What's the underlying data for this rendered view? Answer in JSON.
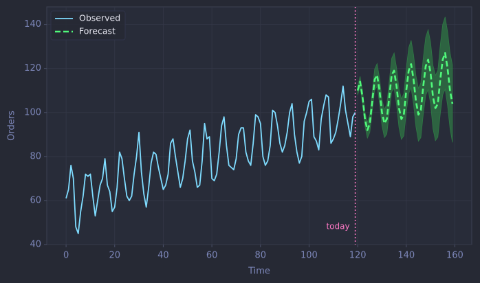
{
  "chart_data": {
    "type": "line",
    "xlabel": "Time",
    "ylabel": "Orders",
    "xlim": [
      -7.95,
      166.95
    ],
    "ylim": [
      40,
      148
    ],
    "xticks": [
      0,
      20,
      40,
      60,
      80,
      100,
      120,
      140,
      160
    ],
    "yticks": [
      40,
      60,
      80,
      100,
      120,
      140
    ],
    "grid": true,
    "legend": "upper left",
    "series": [
      {
        "name": "Observed",
        "color": "#7fdcff",
        "style": "solid",
        "x": [
          0,
          1,
          2,
          3,
          4,
          5,
          6,
          7,
          8,
          9,
          10,
          11,
          12,
          13,
          14,
          15,
          16,
          17,
          18,
          19,
          20,
          21,
          22,
          23,
          24,
          25,
          26,
          27,
          28,
          29,
          30,
          31,
          32,
          33,
          34,
          35,
          36,
          37,
          38,
          39,
          40,
          41,
          42,
          43,
          44,
          45,
          46,
          47,
          48,
          49,
          50,
          51,
          52,
          53,
          54,
          55,
          56,
          57,
          58,
          59,
          60,
          61,
          62,
          63,
          64,
          65,
          66,
          67,
          68,
          69,
          70,
          71,
          72,
          73,
          74,
          75,
          76,
          77,
          78,
          79,
          80,
          81,
          82,
          83,
          84,
          85,
          86,
          87,
          88,
          89,
          90,
          91,
          92,
          93,
          94,
          95,
          96,
          97,
          98,
          99,
          100,
          101,
          102,
          103,
          104,
          105,
          106,
          107,
          108,
          109,
          110,
          111,
          112,
          113,
          114,
          115,
          116,
          117,
          118,
          119
        ],
        "values": [
          61,
          65,
          76,
          70,
          48,
          45,
          55,
          62,
          72,
          71,
          72,
          62,
          53,
          60,
          67,
          70,
          79,
          67,
          64,
          55,
          57,
          66,
          82,
          79,
          70,
          62,
          60,
          62,
          72,
          80,
          91,
          73,
          63,
          57,
          66,
          77,
          82,
          81,
          75,
          70,
          65,
          67,
          72,
          86,
          88,
          80,
          73,
          66,
          70,
          78,
          88,
          92,
          78,
          73,
          66,
          67,
          78,
          95,
          88,
          89,
          70,
          69,
          72,
          82,
          94,
          98,
          85,
          76,
          75,
          74,
          79,
          90,
          93,
          93,
          82,
          78,
          76,
          86,
          99,
          98,
          95,
          80,
          76,
          78,
          85,
          101,
          100,
          94,
          86,
          82,
          85,
          91,
          100,
          104,
          90,
          82,
          77,
          80,
          96,
          100,
          105,
          106,
          89,
          87,
          83,
          97,
          103,
          108,
          107,
          86,
          88,
          91,
          97,
          104,
          112,
          101,
          95,
          89,
          98,
          100
        ]
      },
      {
        "name": "Forecast",
        "color": "#50fa7b",
        "style": "dashed",
        "x": [
          120,
          121,
          122,
          123,
          124,
          125,
          126,
          127,
          128,
          129,
          130,
          131,
          132,
          133,
          134,
          135,
          136,
          137,
          138,
          139,
          140,
          141,
          142,
          143,
          144,
          145,
          146,
          147,
          148,
          149,
          150,
          151,
          152,
          153,
          154,
          155,
          156,
          157,
          158,
          159
        ],
        "values": [
          110,
          114,
          107,
          97,
          92,
          95,
          105,
          115,
          117,
          110,
          100,
          95,
          97,
          107,
          117,
          119,
          112,
          102,
          97,
          99,
          110,
          119,
          122,
          115,
          105,
          99,
          101,
          112,
          121,
          124,
          118,
          107,
          102,
          104,
          115,
          124,
          127,
          120,
          110,
          104
        ],
        "lower": [
          108,
          111.6,
          104.2,
          93.8,
          88.4,
          91,
          100.6,
          110.2,
          111.8,
          104.4,
          94,
          88.6,
          90.2,
          99.8,
          109.4,
          111,
          103.6,
          93.2,
          87.8,
          89.4,
          100,
          108.6,
          111.2,
          103.8,
          93.4,
          87,
          88.6,
          99.2,
          107.8,
          110.4,
          104,
          92.6,
          87.2,
          88.8,
          99.4,
          108,
          110.6,
          103.2,
          92.8,
          86.4
        ],
        "upper": [
          112,
          116.4,
          109.8,
          100.2,
          95.6,
          99,
          109.4,
          119.8,
          122.2,
          115.6,
          106,
          101.4,
          103.8,
          114.2,
          124.6,
          127,
          120.4,
          110.8,
          106.2,
          108.6,
          120,
          129.4,
          132.8,
          126.2,
          116.6,
          111,
          113.4,
          124.8,
          134.2,
          137.6,
          132,
          121.4,
          116.8,
          119.2,
          130.6,
          140,
          143.4,
          136.8,
          127.2,
          121.6
        ],
        "band_color": "#2f7a45"
      }
    ],
    "annotations": [
      {
        "text": "today",
        "x": 119,
        "color": "#ff79c6"
      }
    ]
  }
}
